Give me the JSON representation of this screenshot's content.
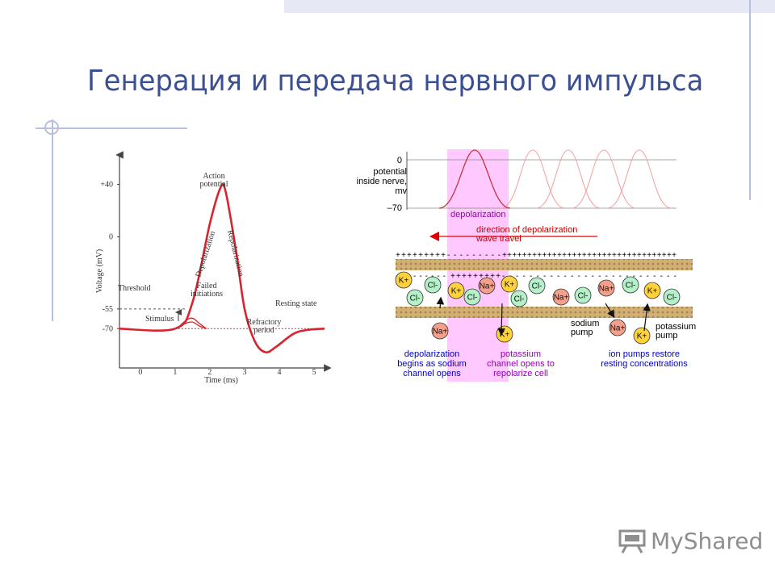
{
  "slide": {
    "title": "Генерация и передача нервного импульса",
    "logo_text": "MyShared"
  },
  "chart_data": {
    "type": "line",
    "title": "",
    "xlabel": "Time (ms)",
    "ylabel": "Voltage (mV)",
    "x_ticks": [
      "0",
      "1",
      "2",
      "3",
      "4",
      "5"
    ],
    "y_ticks": [
      "+40",
      "0",
      "-55",
      "-70"
    ],
    "xlim": [
      -0.6,
      5.3
    ],
    "ylim": [
      -100,
      60
    ],
    "series": [
      {
        "points": [
          [
            -0.6,
            -70
          ],
          [
            1.0,
            -70
          ],
          [
            1.5,
            -50
          ],
          [
            2.0,
            10
          ],
          [
            2.3,
            37
          ],
          [
            2.45,
            35
          ],
          [
            2.75,
            -10
          ],
          [
            3.0,
            -55
          ],
          [
            3.3,
            -80
          ],
          [
            3.6,
            -88
          ],
          [
            3.9,
            -84
          ],
          [
            4.4,
            -74
          ],
          [
            4.8,
            -71
          ],
          [
            5.3,
            -70
          ]
        ]
      }
    ],
    "failed_initiations": [
      {
        "points": [
          [
            1.05,
            -70
          ],
          [
            1.3,
            -64
          ],
          [
            1.5,
            -62
          ],
          [
            1.7,
            -66
          ],
          [
            1.9,
            -70
          ]
        ]
      },
      {
        "points": [
          [
            1.05,
            -70
          ],
          [
            1.3,
            -66
          ],
          [
            1.5,
            -65
          ],
          [
            1.7,
            -68
          ],
          [
            1.9,
            -70
          ]
        ]
      }
    ],
    "threshold_mV": -55,
    "resting_mV": -70,
    "annotations": {
      "threshold": "Threshold",
      "action_line1": "Action",
      "action_line2": "potential",
      "depolarization": "Depolarization",
      "repolarization": "Repolarization",
      "failed_line1": "Failed",
      "failed_line2": "initiations",
      "resting_state": "Resting state",
      "stimulus": "Stimulus",
      "refractory_line1": "Refractory",
      "refractory_line2": "period"
    },
    "colors": {
      "curve": "#d9232e",
      "axis": "#444444"
    }
  },
  "diagram": {
    "axis_top": "0",
    "axis_bottom": "–70",
    "axis_label": [
      "potential",
      "inside nerve,",
      "mv"
    ],
    "depolarization_label": "depolarization",
    "direction_label": [
      "direction of depolarization",
      "wave travel"
    ],
    "plus_row_top": "+++++++++",
    "minus_row_top": "- - - - - - - - -",
    "plus_row_top_right": "+++++++++++++++++++++++++++++++++++",
    "plus_row_bottom": "+++++++++",
    "minus_row_bottom_left": "- - - - - - - - -",
    "minus_row_bottom_right": "- - - - - - - - - - - - - - - - - - - - - - - - - -",
    "ions": [
      {
        "label": "K+",
        "type": "k"
      },
      {
        "label": "Cl-",
        "type": "cl"
      },
      {
        "label": "Cl-",
        "type": "cl"
      },
      {
        "label": "K+",
        "type": "k"
      },
      {
        "label": "Cl-",
        "type": "cl"
      },
      {
        "label": "Na+",
        "type": "na"
      },
      {
        "label": "K+",
        "type": "k"
      },
      {
        "label": "Cl-",
        "type": "cl"
      },
      {
        "label": "Cl-",
        "type": "cl"
      },
      {
        "label": "Na+",
        "type": "na"
      },
      {
        "label": "Cl-",
        "type": "cl"
      },
      {
        "label": "Na+",
        "type": "na"
      },
      {
        "label": "Cl-",
        "type": "cl"
      },
      {
        "label": "K+",
        "type": "k"
      },
      {
        "label": "Cl-",
        "type": "cl"
      },
      {
        "label": "Na+",
        "type": "na"
      },
      {
        "label": "K+",
        "type": "k"
      },
      {
        "label": "Na+",
        "type": "na"
      },
      {
        "label": "K+",
        "type": "k"
      }
    ],
    "sodium_pump": [
      "sodium",
      "pump"
    ],
    "potassium_pump": [
      "potassium",
      "pump"
    ],
    "caption1": [
      "depolarization",
      "begins as sodium",
      "channel opens"
    ],
    "caption2": [
      "potassium",
      "channel opens to",
      "repolarize cell"
    ],
    "caption3": [
      "ion pumps restore",
      "resting concentrations"
    ],
    "colors": {
      "pink": "#ffc8ff",
      "curve": "#c8323c",
      "faint_curve": "#f0a0a0",
      "membrane": "#d2b074",
      "k": "#ffd23c",
      "na": "#f5a08c",
      "cl": "#b4f0c8",
      "caption_blue": "#0000c0",
      "caption_purple": "#9600b4",
      "arrow": "#e00000"
    }
  }
}
